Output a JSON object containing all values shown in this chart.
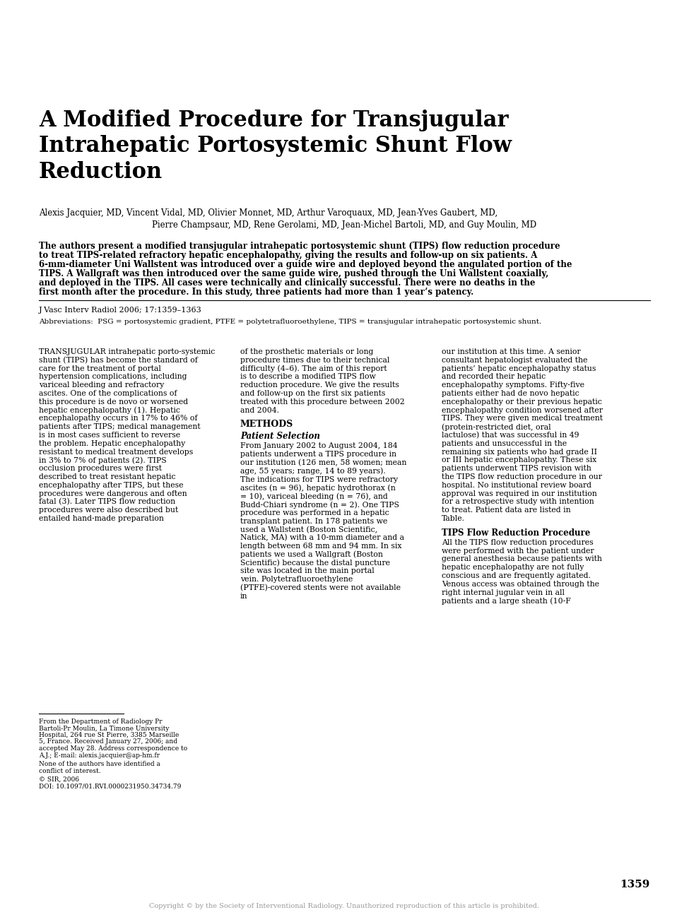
{
  "bg_color": "#ffffff",
  "title": "A Modified Procedure for Transjugular\nIntrahepatic Portosystemic Shunt Flow\nReduction",
  "authors_line1": "Alexis Jacquier, MD, Vincent Vidal, MD, Olivier Monnet, MD, Arthur Varoquaux, MD, Jean-Yves Gaubert, MD,",
  "authors_line2": "Pierre Champsaur, MD, Rene Gerolami, MD, Jean-Michel Bartoli, MD, and Guy Moulin, MD",
  "abstract": "The authors present a modified transjugular intrahepatic portosystemic shunt (TIPS) flow reduction procedure to treat TIPS-related refractory hepatic encephalopathy, giving the results and follow-up on six patients. A 6-mm-diameter Uni Wallstent was introduced over a guide wire and deployed beyond the angulated portion of the TIPS. A Wallgraft was then introduced over the same guide wire, pushed through the Uni Wallstent coaxially, and deployed in the TIPS. All cases were technically and clinically successful. There were no deaths in the first month after the procedure. In this study, three patients had more than 1 year’s patency.",
  "journal_ref": "J Vasc Interv Radiol 2006; 17:1359–1363",
  "abbreviations": "Abbreviations:  PSG = portosystemic gradient, PTFE = polytetrafluoroethylene, TIPS = transjugular intrahepatic portosystemic shunt.",
  "col1_text": "TRANSJUGULAR intrahepatic porto-systemic shunt (TIPS) has become the standard of care for the treatment of portal hypertension complications, including variceal bleeding and refractory ascites. One of the complications of this procedure is de novo or worsened hepatic encephalopathy (1). Hepatic encephalopathy occurs in 17% to 46% of patients after TIPS; medical management is in most cases sufficient to reverse the problem. Hepatic encephalopathy resistant to medical treatment develops in 3% to 7% of patients (2). TIPS occlusion procedures were first described to treat resistant hepatic encephalopathy after TIPS, but these procedures were dangerous and often fatal (3). Later TIPS flow reduction procedures were also described but entailed hand-made preparation",
  "col2_text": "of the prosthetic materials or long procedure times due to their technical difficulty (4–6). The aim of this report is to describe a modified TIPS flow reduction procedure. We give the results and follow-up on the first six patients treated with this procedure between 2002 and 2004.\n\nMETHODS\n\nPatient Selection\n\n    From January 2002 to August 2004, 184 patients underwent a TIPS procedure in our institution (126 men, 58 women; mean age, 55 years; range, 14 to 89 years). The indications for TIPS were refractory ascites (n = 96), hepatic hydrothorax (n = 10), variceal bleeding (n = 76), and Budd-Chiari syndrome (n = 2). One TIPS procedure was performed in a hepatic transplant patient. In 178 patients we used a Wallstent (Boston Scientific, Natick, MA) with a 10-mm diameter and a length between 68 mm and 94 mm. In six patients we used a Wallgraft (Boston Scientific) because the distal puncture site was located in the main portal vein. Polytetrafluoroethylene (PTFE)-covered stents were not available in",
  "col3_text": "our institution at this time. A senior consultant hepatologist evaluated the patients’ hepatic encephalopathy status and recorded their hepatic encephalopathy symptoms. Fifty-five patients either had de novo hepatic encephalopathy or their previous hepatic encephalopathy condition worsened after TIPS. They were given medical treatment (protein-restricted diet, oral lactulose) that was successful in 49 patients and unsuccessful in the remaining six patients who had grade II or III hepatic encephalopathy. These six patients underwent TIPS revision with the TIPS flow reduction procedure in our hospital. No institutional review board approval was required in our institution for a retrospective study with intention to treat. Patient data are listed in Table.\n\nTIPS Flow Reduction Procedure\n\n    All the TIPS flow reduction procedures were performed with the patient under general anesthesia because patients with hepatic encephalopathy are not fully conscious and are frequently agitated. Venous access was obtained through the right internal jugular vein in all patients and a large sheath (10-F",
  "footnote1": "From the Department of Radiology Pr Bartoli-Pr Moulin, La Timone University Hospital, 264 rue St Pierre, 3385 Marseille 5, France. Received January 27, 2006; and accepted May 28. Address correspondence to A.J.; E-mail: alexis.jacquier@ap-hm.fr",
  "footnote2": "None of the authors have identified a conflict of interest.",
  "footnote3": "© SIR, 2006",
  "footnote4": "DOI: 10.1097/01.RVI.0000231950.34734.79",
  "page_number": "1359",
  "copyright": "Copyright © by the Society of Interventional Radiology. Unauthorized reproduction of this article is prohibited."
}
